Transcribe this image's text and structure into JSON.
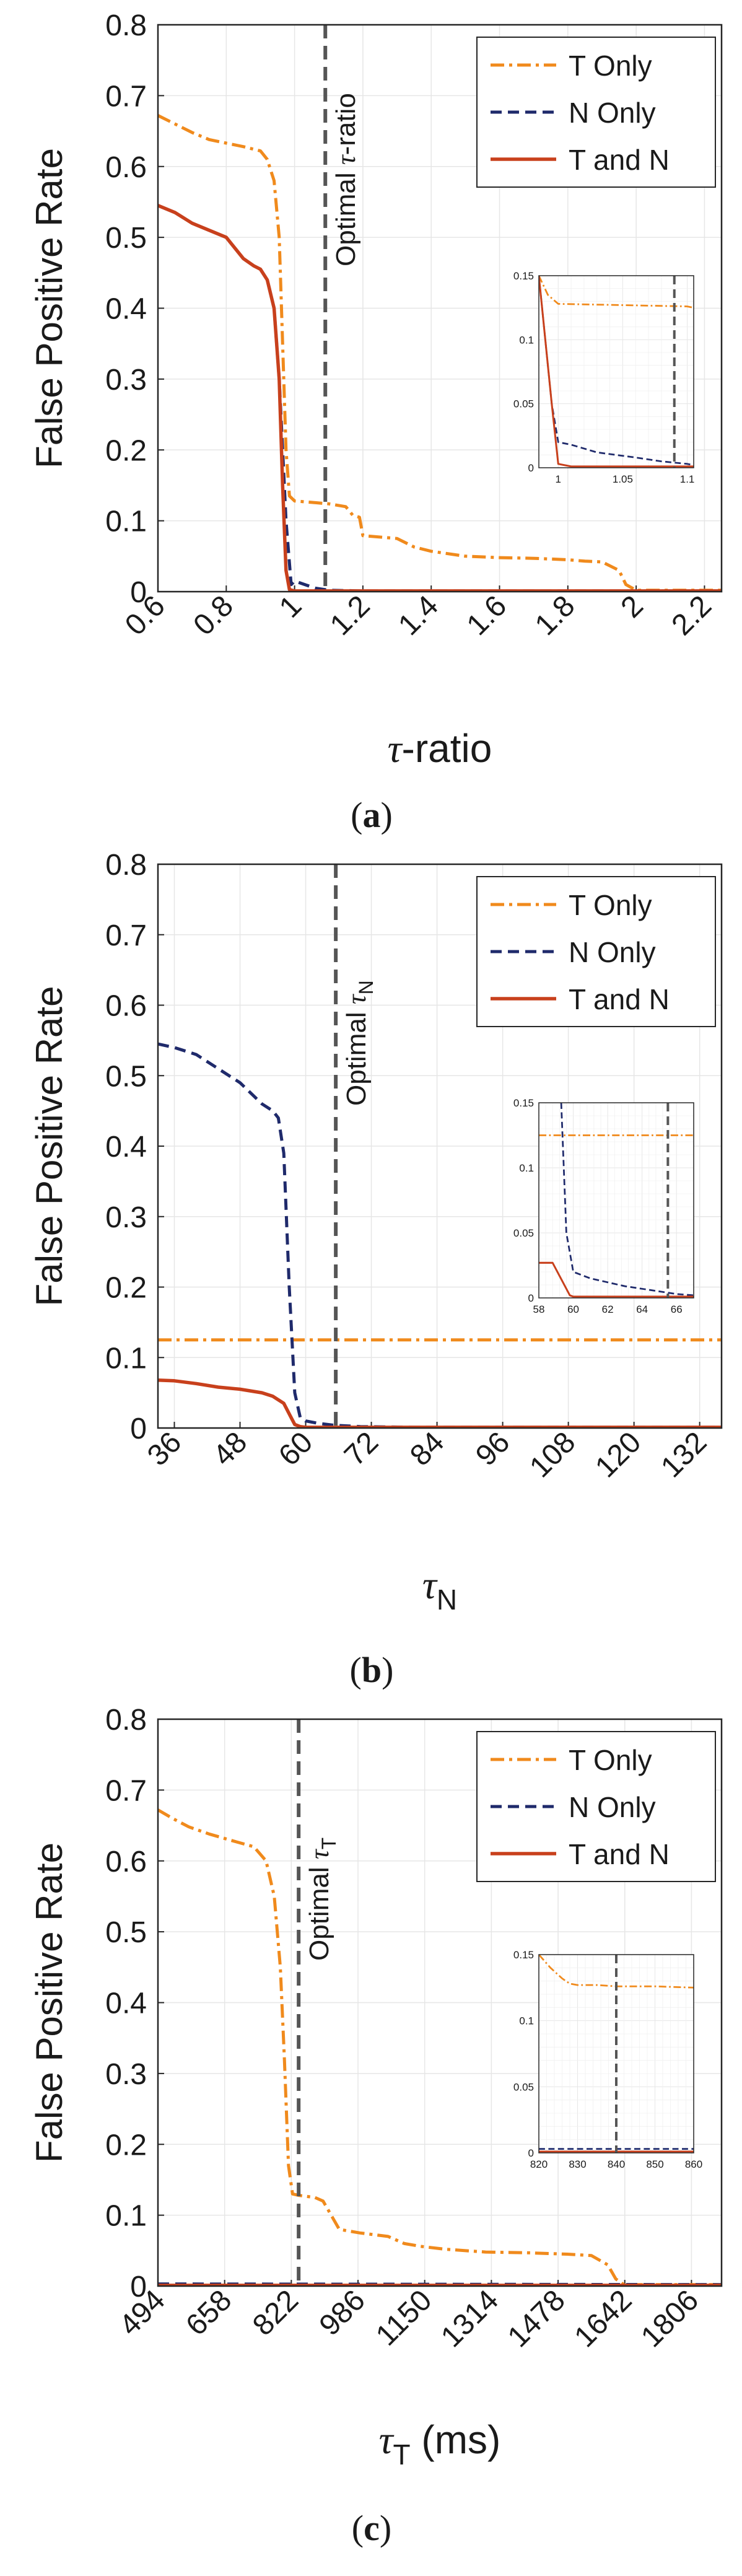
{
  "colors": {
    "t_only": "#F08A1C",
    "n_only": "#1F2A6B",
    "t_and_n": "#C8401C",
    "optimal_line": "#555555",
    "grid": "#e6e6e6",
    "axis": "#262626"
  },
  "chart_data": [
    {
      "panel_label": "(a)",
      "type": "line",
      "title": "",
      "xlabel": "τ-ratio",
      "ylabel": "False Positive Rate",
      "xlim": [
        0.6,
        2.25
      ],
      "ylim": [
        0,
        0.8
      ],
      "xticks": [
        "0.6",
        "0.8",
        "1",
        "1.2",
        "1.4",
        "1.6",
        "1.8",
        "2",
        "2.2"
      ],
      "xtick_values": [
        0.6,
        0.8,
        1.0,
        1.2,
        1.4,
        1.6,
        1.8,
        2.0,
        2.2
      ],
      "yticks": [
        "0",
        "0.1",
        "0.2",
        "0.3",
        "0.4",
        "0.5",
        "0.6",
        "0.7",
        "0.8"
      ],
      "ytick_values": [
        0,
        0.1,
        0.2,
        0.3,
        0.4,
        0.5,
        0.6,
        0.7,
        0.8
      ],
      "legend": [
        "T Only",
        "N Only",
        "T and N"
      ],
      "legend_position": "top-right",
      "annotation": {
        "text": "Optimal τ-ratio",
        "x": 1.09
      },
      "series": [
        {
          "name": "T Only",
          "x": [
            0.6,
            0.65,
            0.7,
            0.75,
            0.8,
            0.85,
            0.9,
            0.92,
            0.94,
            0.955,
            0.965,
            0.975,
            0.985,
            1.0,
            1.05,
            1.1,
            1.15,
            1.17,
            1.19,
            1.2,
            1.3,
            1.35,
            1.4,
            1.5,
            1.6,
            1.7,
            1.8,
            1.85,
            1.9,
            1.95,
            1.97,
            2.0,
            2.1,
            2.25
          ],
          "values": [
            0.672,
            0.66,
            0.648,
            0.638,
            0.633,
            0.628,
            0.622,
            0.61,
            0.58,
            0.5,
            0.35,
            0.2,
            0.135,
            0.128,
            0.126,
            0.124,
            0.12,
            0.108,
            0.105,
            0.079,
            0.075,
            0.063,
            0.057,
            0.05,
            0.048,
            0.047,
            0.045,
            0.043,
            0.042,
            0.03,
            0.01,
            0.002,
            0.002,
            0.002
          ]
        },
        {
          "name": "N Only",
          "x": [
            0.6,
            0.65,
            0.7,
            0.75,
            0.8,
            0.85,
            0.88,
            0.9,
            0.92,
            0.94,
            0.955,
            0.965,
            0.975,
            0.99,
            1.0,
            1.03,
            1.06,
            1.1,
            1.2,
            1.5,
            2.25
          ],
          "values": [
            0.545,
            0.535,
            0.52,
            0.51,
            0.5,
            0.47,
            0.46,
            0.455,
            0.44,
            0.4,
            0.3,
            0.2,
            0.1,
            0.01,
            0.015,
            0.01,
            0.005,
            0.002,
            0.001,
            0.001,
            0.001
          ]
        },
        {
          "name": "T and N",
          "x": [
            0.6,
            0.65,
            0.7,
            0.75,
            0.8,
            0.85,
            0.88,
            0.9,
            0.92,
            0.94,
            0.955,
            0.965,
            0.975,
            0.985,
            1.0,
            1.2,
            2.25
          ],
          "values": [
            0.545,
            0.535,
            0.52,
            0.51,
            0.5,
            0.47,
            0.46,
            0.455,
            0.44,
            0.4,
            0.3,
            0.15,
            0.03,
            0.003,
            0.001,
            0.001,
            0.001
          ]
        }
      ],
      "inset": {
        "xlim": [
          0.985,
          1.105
        ],
        "ylim": [
          0,
          0.15
        ],
        "xticks": [
          "1",
          "1.05",
          "1.1"
        ],
        "xtick_values": [
          1.0,
          1.05,
          1.1
        ],
        "yticks": [
          "0",
          "0.05",
          "0.1",
          "0.15"
        ],
        "ytick_values": [
          0,
          0.05,
          0.1,
          0.15
        ],
        "optimal_x": 1.09,
        "series": [
          {
            "name": "T Only",
            "x": [
              0.985,
              0.992,
              1.0,
              1.05,
              1.1,
              1.105
            ],
            "values": [
              0.15,
              0.135,
              0.128,
              0.127,
              0.126,
              0.125
            ]
          },
          {
            "name": "N Only",
            "x": [
              0.985,
              0.995,
              1.0,
              1.01,
              1.03,
              1.06,
              1.08,
              1.1,
              1.105
            ],
            "values": [
              0.15,
              0.05,
              0.02,
              0.018,
              0.012,
              0.008,
              0.005,
              0.003,
              0.002
            ]
          },
          {
            "name": "T and N",
            "x": [
              0.985,
              0.995,
              1.0,
              1.01,
              1.105
            ],
            "values": [
              0.15,
              0.05,
              0.003,
              0.001,
              0.001
            ]
          }
        ]
      }
    },
    {
      "panel_label": "(b)",
      "type": "line",
      "title": "",
      "xlabel": "τN",
      "ylabel": "False Positive Rate",
      "xlim": [
        33,
        136
      ],
      "ylim": [
        0,
        0.8
      ],
      "xticks": [
        "36",
        "48",
        "60",
        "72",
        "84",
        "96",
        "108",
        "120",
        "132"
      ],
      "xtick_values": [
        36,
        48,
        60,
        72,
        84,
        96,
        108,
        120,
        132
      ],
      "yticks": [
        "0",
        "0.1",
        "0.2",
        "0.3",
        "0.4",
        "0.5",
        "0.6",
        "0.7",
        "0.8"
      ],
      "ytick_values": [
        0,
        0.1,
        0.2,
        0.3,
        0.4,
        0.5,
        0.6,
        0.7,
        0.8
      ],
      "legend": [
        "T Only",
        "N Only",
        "T and N"
      ],
      "legend_position": "top-right",
      "annotation": {
        "text": "Optimal τN",
        "x": 65.5
      },
      "series": [
        {
          "name": "T Only",
          "x": [
            33,
            136
          ],
          "values": [
            0.125,
            0.125
          ]
        },
        {
          "name": "N Only",
          "x": [
            33,
            36,
            40,
            44,
            48,
            52,
            54,
            55,
            56,
            57,
            58,
            59,
            60,
            62,
            65,
            70,
            80,
            136
          ],
          "values": [
            0.545,
            0.54,
            0.53,
            0.51,
            0.49,
            0.46,
            0.45,
            0.44,
            0.39,
            0.2,
            0.05,
            0.015,
            0.01,
            0.007,
            0.004,
            0.002,
            0.001,
            0.001
          ]
        },
        {
          "name": "T and N",
          "x": [
            33,
            36,
            40,
            44,
            48,
            52,
            54,
            56,
            57,
            58,
            59,
            60,
            62,
            136
          ],
          "values": [
            0.068,
            0.067,
            0.063,
            0.058,
            0.055,
            0.05,
            0.045,
            0.035,
            0.02,
            0.005,
            0.002,
            0.001,
            0.001,
            0.001
          ]
        }
      ],
      "inset": {
        "xlim": [
          58,
          67
        ],
        "ylim": [
          0,
          0.15
        ],
        "xticks": [
          "58",
          "60",
          "62",
          "64",
          "66"
        ],
        "xtick_values": [
          58,
          60,
          62,
          64,
          66
        ],
        "yticks": [
          "0",
          "0.05",
          "0.1",
          "0.15"
        ],
        "ytick_values": [
          0,
          0.05,
          0.1,
          0.15
        ],
        "optimal_x": 65.5,
        "series": [
          {
            "name": "T Only",
            "x": [
              58,
              67
            ],
            "values": [
              0.125,
              0.125
            ]
          },
          {
            "name": "N Only",
            "x": [
              59.3,
              59.6,
              60,
              61,
              62,
              63,
              64,
              65,
              66,
              67
            ],
            "values": [
              0.15,
              0.05,
              0.02,
              0.015,
              0.012,
              0.009,
              0.007,
              0.005,
              0.003,
              0.002
            ]
          },
          {
            "name": "T and N",
            "x": [
              58,
              58.8,
              59.8,
              60,
              67
            ],
            "values": [
              0.027,
              0.027,
              0.002,
              0.001,
              0.001
            ]
          }
        ]
      }
    },
    {
      "panel_label": "(c)",
      "type": "line",
      "title": "",
      "xlabel": "τT (ms)",
      "ylabel": "False Positive Rate",
      "xlim": [
        494,
        1880
      ],
      "ylim": [
        0,
        0.8
      ],
      "xticks": [
        "494",
        "658",
        "822",
        "986",
        "1150",
        "1314",
        "1478",
        "1642",
        "1806"
      ],
      "xtick_values": [
        494,
        658,
        822,
        986,
        1150,
        1314,
        1478,
        1642,
        1806
      ],
      "yticks": [
        "0",
        "0.1",
        "0.2",
        "0.3",
        "0.4",
        "0.5",
        "0.6",
        "0.7",
        "0.8"
      ],
      "ytick_values": [
        0,
        0.1,
        0.2,
        0.3,
        0.4,
        0.5,
        0.6,
        0.7,
        0.8
      ],
      "legend": [
        "T Only",
        "N Only",
        "T and N"
      ],
      "legend_position": "top-right",
      "annotation": {
        "text": "Optimal τT",
        "x": 840
      },
      "series": [
        {
          "name": "T Only",
          "x": [
            494,
            530,
            570,
            620,
            680,
            730,
            760,
            780,
            795,
            805,
            815,
            825,
            840,
            880,
            900,
            920,
            940,
            990,
            1060,
            1100,
            1140,
            1200,
            1300,
            1400,
            1500,
            1560,
            1600,
            1620,
            1640,
            1700,
            1880
          ],
          "values": [
            0.672,
            0.66,
            0.648,
            0.638,
            0.628,
            0.62,
            0.6,
            0.55,
            0.45,
            0.32,
            0.17,
            0.13,
            0.128,
            0.125,
            0.12,
            0.1,
            0.08,
            0.075,
            0.07,
            0.06,
            0.056,
            0.052,
            0.048,
            0.047,
            0.045,
            0.043,
            0.03,
            0.01,
            0.002,
            0.002,
            0.002
          ]
        },
        {
          "name": "N Only",
          "x": [
            494,
            1880
          ],
          "values": [
            0.003,
            0.002
          ]
        },
        {
          "name": "T and N",
          "x": [
            494,
            1880
          ],
          "values": [
            0.001,
            0.001
          ]
        }
      ],
      "inset": {
        "xlim": [
          820,
          860
        ],
        "ylim": [
          0,
          0.15
        ],
        "xticks": [
          "820",
          "830",
          "840",
          "850",
          "860"
        ],
        "xtick_values": [
          820,
          830,
          840,
          850,
          860
        ],
        "yticks": [
          "0",
          "0.05",
          "0.1",
          "0.15"
        ],
        "ytick_values": [
          0,
          0.05,
          0.1,
          0.15
        ],
        "optimal_x": 840,
        "series": [
          {
            "name": "T Only",
            "x": [
              820,
              823,
              826,
              828,
              830,
              835,
              840,
              850,
              860
            ],
            "values": [
              0.15,
              0.14,
              0.132,
              0.128,
              0.127,
              0.127,
              0.126,
              0.126,
              0.125
            ]
          },
          {
            "name": "N Only",
            "x": [
              820,
              860
            ],
            "values": [
              0.003,
              0.003
            ]
          },
          {
            "name": "T and N",
            "x": [
              820,
              860
            ],
            "values": [
              0.001,
              0.001
            ]
          }
        ]
      }
    }
  ]
}
